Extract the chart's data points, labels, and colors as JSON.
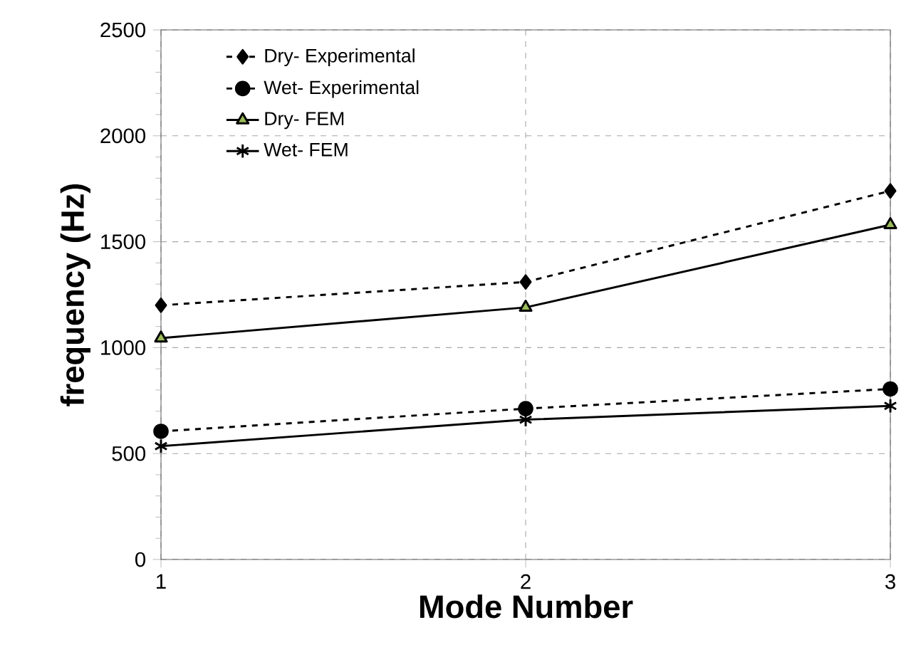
{
  "chart_data": {
    "type": "line",
    "xlabel": "Mode Number",
    "ylabel": "frequency (Hz)",
    "x": [
      1,
      2,
      3
    ],
    "xlim": [
      1,
      3
    ],
    "xticks": [
      1,
      2,
      3
    ],
    "ylim": [
      0,
      2500
    ],
    "yticks": [
      0,
      500,
      1000,
      1500,
      2000,
      2500
    ],
    "grid": true,
    "legend": "top left",
    "series": [
      {
        "name": "Dry- Experimental",
        "color": "#000000",
        "marker": "diamond",
        "line_style": "dashed",
        "values": [
          1200,
          1310,
          1740
        ]
      },
      {
        "name": "Wet- Experimental",
        "color": "#000000",
        "marker": "circle",
        "line_style": "dashed",
        "values": [
          605,
          712,
          805
        ]
      },
      {
        "name": "Dry- FEM",
        "color": "#9bbb59",
        "marker": "triangle",
        "line_style": "solid",
        "values": [
          1045,
          1190,
          1580
        ]
      },
      {
        "name": "Wet- FEM",
        "color": "#000000",
        "marker": "cross",
        "line_style": "solid",
        "values": [
          535,
          660,
          725
        ]
      }
    ]
  }
}
